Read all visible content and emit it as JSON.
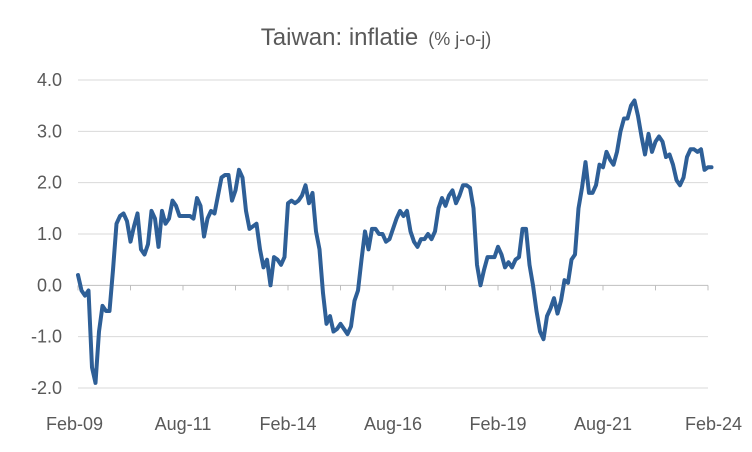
{
  "chart_data": {
    "type": "line",
    "title": "Taiwan: inflatie",
    "subtitle": "(% j-o-j)",
    "ylim": [
      -2.0,
      4.0
    ],
    "y_ticks": [
      "4.0",
      "3.0",
      "2.0",
      "1.0",
      "0.0",
      "-1.0",
      "-2.0"
    ],
    "x_ticks": [
      "Feb-09",
      "Aug-11",
      "Feb-14",
      "Aug-16",
      "Feb-19",
      "Aug-21",
      "Feb-24"
    ],
    "grid": "horizontal",
    "legend": "none",
    "color": "#2e5f97",
    "series": [
      {
        "x": [
          "2009-02",
          "2009-03",
          "2009-04",
          "2009-05",
          "2009-06",
          "2009-07",
          "2009-08",
          "2009-09",
          "2009-10",
          "2009-11",
          "2009-12",
          "2010-01",
          "2010-02",
          "2010-03",
          "2010-04",
          "2010-05",
          "2010-06",
          "2010-07",
          "2010-08",
          "2010-09",
          "2010-10",
          "2010-11",
          "2010-12",
          "2011-01",
          "2011-02",
          "2011-03",
          "2011-04",
          "2011-05",
          "2011-06",
          "2011-07",
          "2011-08",
          "2011-09",
          "2011-10",
          "2011-11",
          "2011-12",
          "2012-01",
          "2012-02",
          "2012-03",
          "2012-04",
          "2012-05",
          "2012-06",
          "2012-07",
          "2012-08",
          "2012-09",
          "2012-10",
          "2012-11",
          "2012-12",
          "2013-01",
          "2013-02",
          "2013-03",
          "2013-04",
          "2013-05",
          "2013-06",
          "2013-07",
          "2013-08",
          "2013-09",
          "2013-10",
          "2013-11",
          "2013-12",
          "2014-01",
          "2014-02",
          "2014-03",
          "2014-04",
          "2014-05",
          "2014-06",
          "2014-07",
          "2014-08",
          "2014-09",
          "2014-10",
          "2014-11",
          "2014-12",
          "2015-01",
          "2015-02",
          "2015-03",
          "2015-04",
          "2015-05",
          "2015-06",
          "2015-07",
          "2015-08",
          "2015-09",
          "2015-10",
          "2015-11",
          "2015-12",
          "2016-01",
          "2016-02",
          "2016-03",
          "2016-04",
          "2016-05",
          "2016-06",
          "2016-07",
          "2016-08",
          "2016-09",
          "2016-10",
          "2016-11",
          "2016-12",
          "2017-01",
          "2017-02",
          "2017-03",
          "2017-04",
          "2017-05",
          "2017-06",
          "2017-07",
          "2017-08",
          "2017-09",
          "2017-10",
          "2017-11",
          "2017-12",
          "2018-01",
          "2018-02",
          "2018-03",
          "2018-04",
          "2018-05",
          "2018-06",
          "2018-07",
          "2018-08",
          "2018-09",
          "2018-10",
          "2018-11",
          "2018-12",
          "2019-01",
          "2019-02",
          "2019-03",
          "2019-04",
          "2019-05",
          "2019-06",
          "2019-07",
          "2019-08",
          "2019-09",
          "2019-10",
          "2019-11",
          "2019-12",
          "2020-01",
          "2020-02",
          "2020-03",
          "2020-04",
          "2020-05",
          "2020-06",
          "2020-07",
          "2020-08",
          "2020-09",
          "2020-10",
          "2020-11",
          "2020-12",
          "2021-01",
          "2021-02",
          "2021-03",
          "2021-04",
          "2021-05",
          "2021-06",
          "2021-07",
          "2021-08",
          "2021-09",
          "2021-10",
          "2021-11",
          "2021-12",
          "2022-01",
          "2022-02",
          "2022-03",
          "2022-04",
          "2022-05",
          "2022-06",
          "2022-07",
          "2022-08",
          "2022-09",
          "2022-10",
          "2022-11",
          "2022-12",
          "2023-01",
          "2023-02",
          "2023-03",
          "2023-04",
          "2023-05",
          "2023-06",
          "2023-07",
          "2023-08",
          "2023-09",
          "2023-10",
          "2023-11",
          "2023-12",
          "2024-01",
          "2024-02",
          "2024-03"
        ],
        "values": [
          0.2,
          -0.1,
          -0.2,
          -0.1,
          -1.6,
          -1.9,
          -0.9,
          -0.4,
          -0.5,
          -0.5,
          0.3,
          1.2,
          1.35,
          1.4,
          1.25,
          0.85,
          1.15,
          1.4,
          0.7,
          0.6,
          0.8,
          1.45,
          1.3,
          0.75,
          1.45,
          1.2,
          1.3,
          1.65,
          1.55,
          1.35,
          1.35,
          1.35,
          1.35,
          1.3,
          1.7,
          1.55,
          0.95,
          1.3,
          1.45,
          1.4,
          1.75,
          2.1,
          2.15,
          2.15,
          1.65,
          1.85,
          2.25,
          2.1,
          1.45,
          1.1,
          1.15,
          1.2,
          0.7,
          0.35,
          0.5,
          0.0,
          0.55,
          0.5,
          0.4,
          0.55,
          1.6,
          1.65,
          1.6,
          1.65,
          1.75,
          1.95,
          1.6,
          1.8,
          1.05,
          0.7,
          -0.15,
          -0.75,
          -0.6,
          -0.9,
          -0.85,
          -0.75,
          -0.85,
          -0.95,
          -0.8,
          -0.3,
          -0.1,
          0.5,
          1.05,
          0.7,
          1.1,
          1.1,
          1.0,
          1.0,
          0.85,
          0.9,
          1.1,
          1.3,
          1.45,
          1.35,
          1.45,
          1.05,
          0.85,
          0.75,
          0.9,
          0.9,
          1.0,
          0.9,
          1.05,
          1.5,
          1.7,
          1.55,
          1.75,
          1.85,
          1.6,
          1.75,
          1.95,
          1.95,
          1.9,
          1.5,
          0.4,
          0.0,
          0.3,
          0.55,
          0.55,
          0.55,
          0.75,
          0.6,
          0.35,
          0.45,
          0.35,
          0.5,
          0.55,
          1.1,
          1.1,
          0.4,
          0.0,
          -0.5,
          -0.9,
          -1.05,
          -0.6,
          -0.45,
          -0.25,
          -0.55,
          -0.3,
          0.1,
          0.05,
          0.5,
          0.6,
          1.5,
          1.9,
          2.4,
          1.8,
          1.8,
          1.95,
          2.35,
          2.3,
          2.6,
          2.45,
          2.35,
          2.6,
          3.0,
          3.25,
          3.25,
          3.5,
          3.6,
          3.3,
          2.9,
          2.55,
          2.95,
          2.6,
          2.8,
          2.9,
          2.8,
          2.5,
          2.55,
          2.35,
          2.05,
          1.95,
          2.1,
          2.5,
          2.65,
          2.65,
          2.6,
          2.65,
          2.25,
          2.3,
          2.3
        ]
      }
    ]
  }
}
